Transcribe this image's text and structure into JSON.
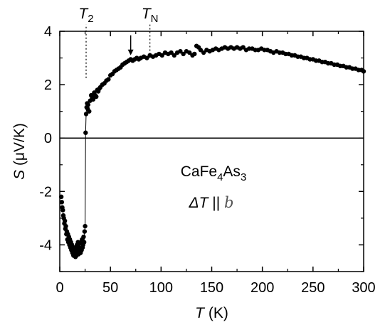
{
  "chart_data": {
    "type": "scatter",
    "title": "",
    "xlabel": {
      "symbol": "T",
      "unit": " (K)"
    },
    "ylabel": {
      "symbol": "S",
      "unit": " (μV/K)"
    },
    "xlim": [
      0,
      300
    ],
    "ylim": [
      -5,
      4
    ],
    "xticks": [
      0,
      50,
      100,
      150,
      200,
      250,
      300
    ],
    "yticks": [
      -4,
      -2,
      0,
      2,
      4
    ],
    "grid": false,
    "legend": "none",
    "reference_line_y": 0,
    "annotations": {
      "compound": {
        "base1": "CaFe",
        "sub1": "4",
        "base2": "As",
        "sub2": "3"
      },
      "direction": {
        "delta": "Δ",
        "T": "T",
        "par": " || ",
        "axis": "b"
      },
      "T2": {
        "symbol": "T",
        "subscript": "2",
        "x": 26,
        "line_from_y": 2.25,
        "line_to_y": 4.25
      },
      "TN": {
        "symbol": "T",
        "subscript": "N",
        "x": 89,
        "line_from_y": 3.0,
        "line_to_y": 4.25
      },
      "arrow": {
        "x": 70,
        "from_y": 3.85,
        "to_y": 3.1
      }
    },
    "series": [
      {
        "marker": "circle",
        "color": "#000000",
        "connect_transition": true,
        "x": [
          1.5,
          2,
          2.5,
          3,
          3.5,
          4,
          4.5,
          5,
          5.5,
          6,
          6.5,
          7,
          7.5,
          8,
          8.5,
          9,
          9.5,
          10,
          10.5,
          11,
          11.5,
          12,
          12.5,
          13,
          13.5,
          14,
          14.5,
          15,
          15.5,
          16,
          16.5,
          17,
          17.5,
          18,
          18.5,
          19,
          19.5,
          20,
          20.5,
          21,
          21.5,
          22,
          22.5,
          23,
          23.5,
          24,
          24.5,
          25,
          25.5,
          26,
          26.5,
          27,
          27.5,
          28,
          29,
          30,
          31,
          32,
          33,
          34,
          35,
          36,
          37,
          38,
          39,
          40,
          42,
          44,
          46,
          48,
          50,
          52,
          54,
          56,
          58,
          60,
          62,
          64,
          66,
          68,
          70,
          72,
          74,
          76,
          78,
          80,
          83,
          86,
          89,
          92,
          95,
          98,
          101,
          104,
          107,
          110,
          113,
          116,
          119,
          122,
          125,
          128,
          131,
          133,
          135,
          137,
          139,
          142,
          145,
          148,
          151,
          154,
          157,
          160,
          163,
          166,
          169,
          172,
          175,
          178,
          181,
          184,
          187,
          190,
          193,
          196,
          199,
          202,
          205,
          208,
          211,
          214,
          217,
          220,
          223,
          226,
          229,
          232,
          235,
          238,
          241,
          244,
          247,
          250,
          253,
          256,
          259,
          262,
          265,
          268,
          271,
          274,
          277,
          280,
          283,
          286,
          289,
          292,
          295,
          298,
          300
        ],
        "y": [
          -2.2,
          -2.4,
          -2.6,
          -2.7,
          -2.9,
          -3.0,
          -3.2,
          -3.1,
          -3.4,
          -3.3,
          -3.6,
          -3.5,
          -3.8,
          -3.6,
          -3.9,
          -3.7,
          -4.0,
          -3.8,
          -4.1,
          -3.9,
          -4.2,
          -4.0,
          -4.3,
          -4.1,
          -4.4,
          -4.2,
          -4.3,
          -4.1,
          -4.45,
          -4.2,
          -4.4,
          -4.0,
          -4.3,
          -3.9,
          -4.35,
          -4.1,
          -4.2,
          -3.95,
          -4.3,
          -3.9,
          -4.2,
          -3.8,
          -4.1,
          -4.0,
          -3.7,
          -3.9,
          -3.5,
          -3.3,
          0.2,
          0.9,
          1.15,
          1.3,
          1.1,
          1.25,
          1.0,
          1.4,
          1.6,
          1.5,
          1.45,
          1.7,
          1.6,
          1.55,
          1.8,
          1.75,
          1.85,
          1.9,
          2.0,
          2.05,
          2.15,
          2.2,
          2.35,
          2.4,
          2.5,
          2.55,
          2.6,
          2.65,
          2.75,
          2.8,
          2.85,
          2.9,
          2.95,
          2.9,
          2.95,
          3.0,
          2.95,
          3.0,
          3.05,
          3.0,
          3.1,
          3.05,
          3.1,
          3.15,
          3.1,
          3.2,
          3.15,
          3.2,
          3.1,
          3.2,
          3.25,
          3.15,
          3.25,
          3.2,
          3.1,
          3.15,
          3.45,
          3.4,
          3.3,
          3.2,
          3.3,
          3.25,
          3.3,
          3.35,
          3.3,
          3.35,
          3.4,
          3.35,
          3.4,
          3.35,
          3.4,
          3.35,
          3.4,
          3.3,
          3.35,
          3.35,
          3.3,
          3.3,
          3.35,
          3.3,
          3.3,
          3.25,
          3.2,
          3.25,
          3.2,
          3.2,
          3.15,
          3.15,
          3.1,
          3.1,
          3.05,
          3.05,
          3.0,
          3.0,
          2.95,
          2.95,
          2.9,
          2.9,
          2.85,
          2.85,
          2.8,
          2.8,
          2.75,
          2.75,
          2.7,
          2.7,
          2.65,
          2.65,
          2.6,
          2.6,
          2.55,
          2.55,
          2.5
        ]
      }
    ]
  }
}
